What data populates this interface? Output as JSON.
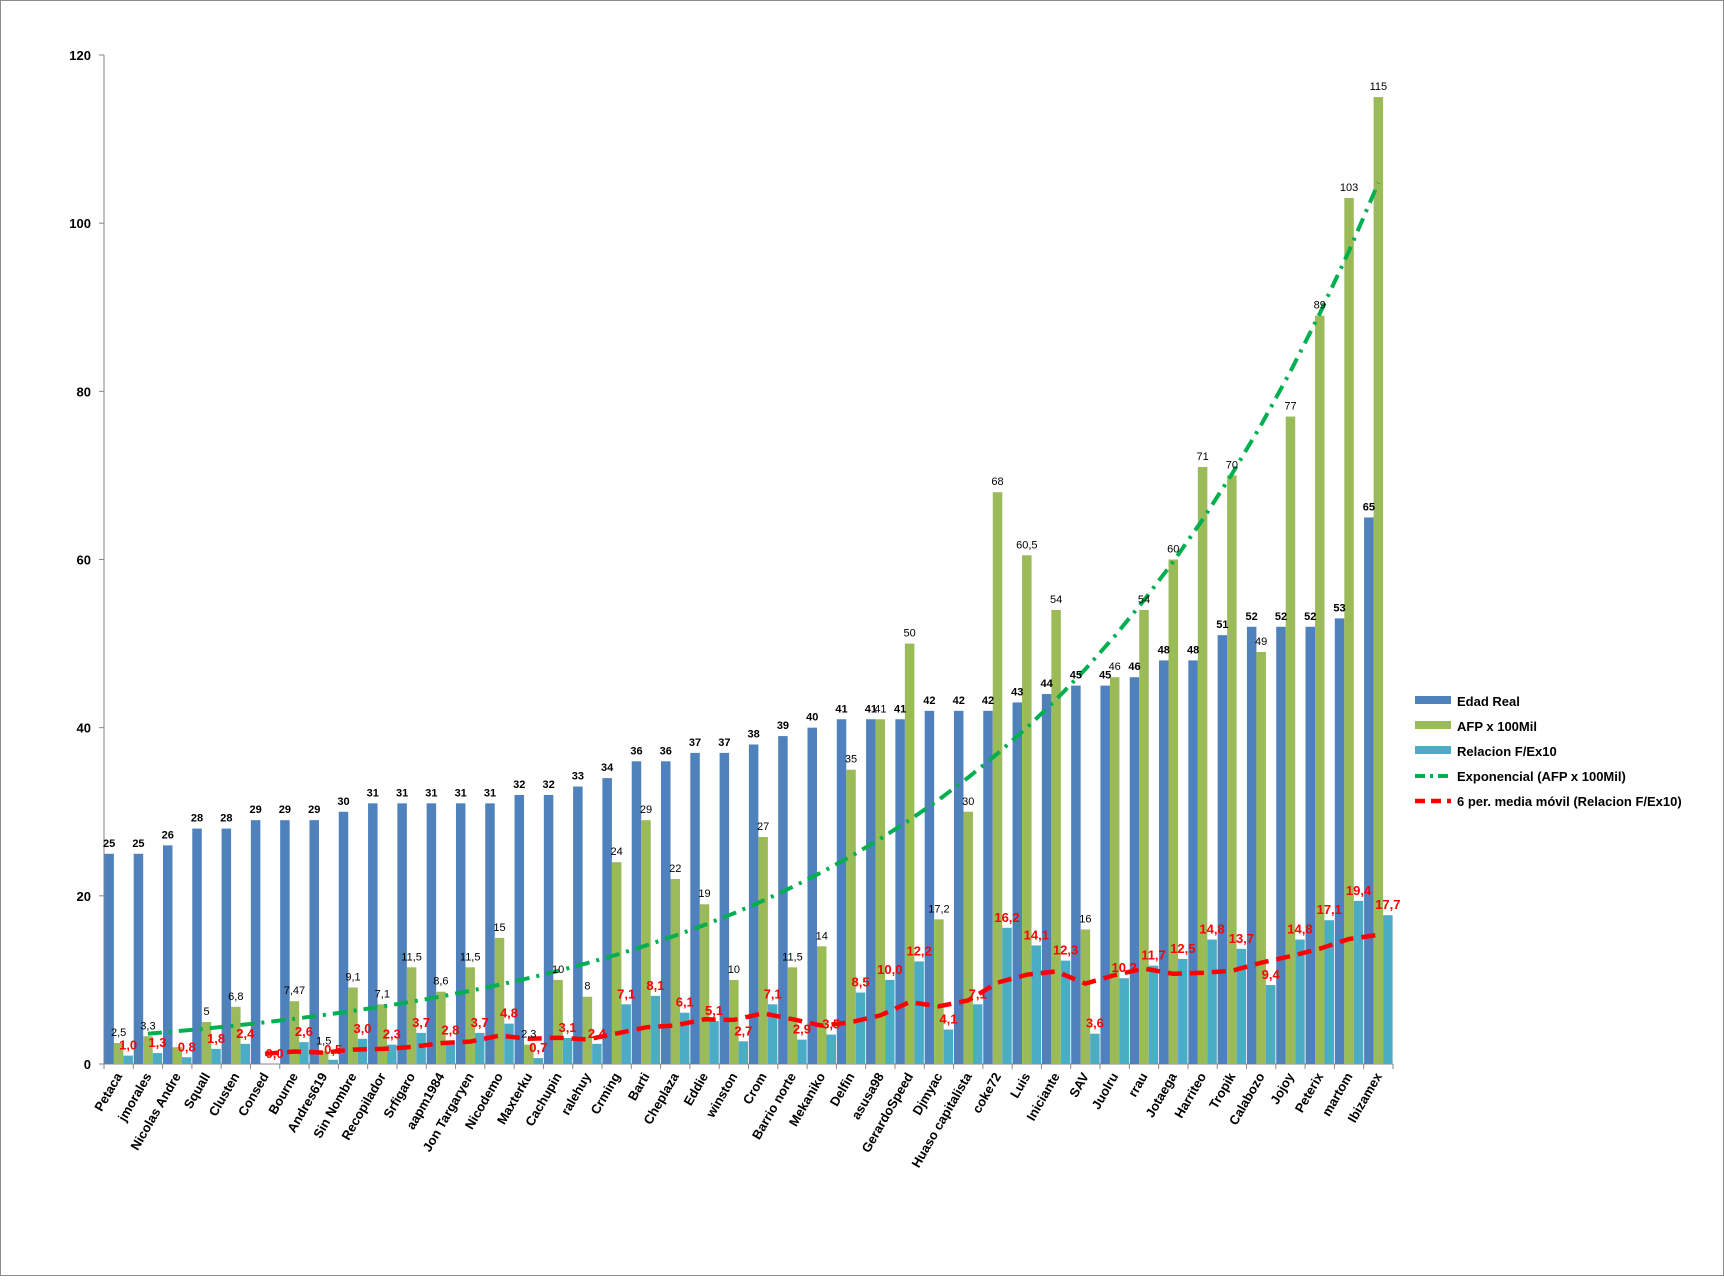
{
  "chart_data": {
    "type": "bar",
    "title": "",
    "xlabel": "",
    "ylabel": "",
    "ylim": [
      0,
      120
    ],
    "yticks": [
      0,
      20,
      40,
      60,
      80,
      100,
      120
    ],
    "grid": false,
    "legend_position": "right",
    "categories": [
      "Petaca",
      "jmorales",
      "Nicolas Andre",
      "Squall",
      "Clusten",
      "Consed",
      "Bourne",
      "Andres619",
      "Sin Nombre",
      "Recopilador",
      "Srfigaro",
      "aapm1984",
      "Jon Targaryen",
      "Nicodemo",
      "Maxterku",
      "Cachupin",
      "ralehuy",
      "Crming",
      "Barti",
      "Cheplaza",
      "Eddie",
      "winston",
      "Crom",
      "Barrio norte",
      "Mekaniko",
      "Delfin",
      "asusa98",
      "GerardoSpeed",
      "Djmyac",
      "Huaso capitalista",
      "coke72",
      "Luis",
      "Iniciante",
      "SAV",
      "Juolru",
      "rrau",
      "Jotaega",
      "Harriteo",
      "Tropik",
      "Calabozo",
      "Jojoy",
      "Peterix",
      "martom",
      "Ibizamex"
    ],
    "series": [
      {
        "name": "Edad Real",
        "color": "#4f81bd",
        "values": [
          25,
          25,
          26,
          28,
          28,
          29,
          29,
          29,
          30,
          31,
          31,
          31,
          31,
          31,
          32,
          32,
          33,
          34,
          36,
          36,
          37,
          37,
          38,
          39,
          40,
          41,
          41,
          41,
          42,
          42,
          42,
          43,
          44,
          45,
          45,
          46,
          48,
          48,
          51,
          52,
          52,
          52,
          53,
          65
        ],
        "labels": [
          "25",
          "25",
          "26",
          "28",
          "28",
          "29",
          "29",
          "29",
          "30",
          "31",
          "31",
          "31",
          "31",
          "31",
          "32",
          "32",
          "33",
          "34",
          "36",
          "36",
          "37",
          "37",
          "38",
          "39",
          "40",
          "41",
          "41",
          "41",
          "42",
          "42",
          "42",
          "43",
          "44",
          "45",
          "45",
          "46",
          "48",
          "48",
          "51",
          "52",
          "52",
          "52",
          "53",
          "65"
        ]
      },
      {
        "name": "AFP x 100Mil",
        "color": "#9bbb59",
        "values": [
          2.5,
          3.3,
          2,
          5,
          6.8,
          0,
          7.47,
          1.5,
          9.1,
          7.1,
          11.5,
          8.6,
          11.5,
          15,
          2.3,
          10,
          8,
          24,
          29,
          22,
          19,
          10,
          27,
          11.5,
          14,
          35,
          41,
          50,
          17.2,
          30,
          68,
          60.5,
          54,
          16,
          46,
          54,
          60,
          71,
          70,
          49,
          77,
          89,
          103,
          115
        ],
        "labels": [
          "2,5",
          "3,3",
          "",
          "5",
          "6,8",
          "",
          "7,47",
          "1,5",
          "9,1",
          "7,1",
          "11,5",
          "8,6",
          "11,5",
          "15",
          "2,3",
          "10",
          "8",
          "24",
          "29",
          "22",
          "19",
          "10",
          "27",
          "11,5",
          "14",
          "35",
          "41",
          "50",
          "17,2",
          "30",
          "68",
          "60,5",
          "54",
          "16",
          "46",
          "54",
          "60",
          "71",
          "70",
          "49",
          "77",
          "89",
          "103",
          "115"
        ]
      },
      {
        "name": "Relacion F/Ex10",
        "color": "#4bacc6",
        "values": [
          1.0,
          1.3,
          0.8,
          1.8,
          2.4,
          0.0,
          2.6,
          0.5,
          3.0,
          2.3,
          3.7,
          2.8,
          3.7,
          4.8,
          0.7,
          3.1,
          2.4,
          7.1,
          8.1,
          6.1,
          5.1,
          2.7,
          7.1,
          2.9,
          3.5,
          8.5,
          10.0,
          12.2,
          4.1,
          7.1,
          16.2,
          14.1,
          12.3,
          3.6,
          10.2,
          11.7,
          12.5,
          14.8,
          13.7,
          9.4,
          14.8,
          17.1,
          19.4,
          17.7
        ],
        "labels": [
          "1,0",
          "1,3",
          "0,8",
          "1,8",
          "2,4",
          "0,0",
          "2,6",
          "0,5",
          "3,0",
          "2,3",
          "3,7",
          "2,8",
          "3,7",
          "4,8",
          "0,7",
          "3,1",
          "2,4",
          "7,1",
          "8,1",
          "6,1",
          "5,1",
          "2,7",
          "7,1",
          "2,9",
          "3,5",
          "8,5",
          "10,0",
          "12,2",
          "4,1",
          "7,1",
          "16,2",
          "14,1",
          "12,3",
          "3,6",
          "10,2",
          "11,7",
          "12,5",
          "14,8",
          "13,7",
          "9,4",
          "14,8",
          "17,1",
          "19,4",
          "17,7"
        ]
      }
    ],
    "trendlines": [
      {
        "name": "Exponencial (AFP x 100Mil)",
        "type": "exponential",
        "of_series": "AFP x 100Mil",
        "color": "#00b050",
        "style": "dash-dot",
        "start": 3.6,
        "end": 104.8
      },
      {
        "name": "6 per. media móvil (Relacion F/Ex10)",
        "type": "moving_average",
        "period": 6,
        "of_series": "Relacion F/Ex10",
        "color": "#ff0000",
        "style": "dash"
      }
    ]
  },
  "legend": [
    {
      "label": "Edad Real",
      "icon": "bar-swatch",
      "color": "#4f81bd"
    },
    {
      "label": "AFP x 100Mil",
      "icon": "bar-swatch",
      "color": "#9bbb59"
    },
    {
      "label": "Relacion F/Ex10",
      "icon": "bar-swatch",
      "color": "#4bacc6"
    },
    {
      "label": "Exponencial (AFP x 100Mil)",
      "icon": "dash-dot-line",
      "color": "#00b050"
    },
    {
      "label": "6 per. media móvil (Relacion F/Ex10)",
      "icon": "dash-line",
      "color": "#ff0000"
    }
  ]
}
